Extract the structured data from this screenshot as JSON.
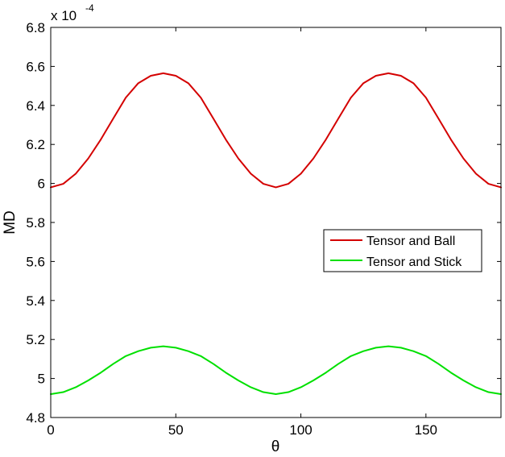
{
  "chart_data": {
    "type": "line",
    "xlabel": "θ",
    "ylabel": "MD",
    "multiplier_base": "x 10",
    "multiplier_exponent": "-4",
    "xlim": [
      0,
      180
    ],
    "ylim": [
      4.8,
      6.8
    ],
    "xticks": [
      0,
      50,
      100,
      150
    ],
    "yticks": [
      4.8,
      5,
      5.2,
      5.4,
      5.6,
      5.8,
      6,
      6.2,
      6.4,
      6.6,
      6.8
    ],
    "ytick_labels": [
      "4.8",
      "5",
      "5.2",
      "5.4",
      "5.6",
      "5.8",
      "6",
      "6.2",
      "6.4",
      "6.6",
      "6.8"
    ],
    "grid": false,
    "legend_position": "right-middle",
    "x": [
      0,
      5,
      10,
      15,
      20,
      25,
      30,
      35,
      40,
      45,
      50,
      55,
      60,
      65,
      70,
      75,
      80,
      85,
      90,
      95,
      100,
      105,
      110,
      115,
      120,
      125,
      130,
      135,
      140,
      145,
      150,
      155,
      160,
      165,
      170,
      175,
      180
    ],
    "series": [
      {
        "name": "Tensor and Ball",
        "color": "#d40000",
        "values": [
          5.98,
          5.998,
          6.05,
          6.128,
          6.225,
          6.333,
          6.44,
          6.514,
          6.552,
          6.565,
          6.552,
          6.514,
          6.44,
          6.333,
          6.225,
          6.128,
          6.05,
          5.998,
          5.98,
          5.998,
          6.05,
          6.128,
          6.225,
          6.333,
          6.44,
          6.514,
          6.552,
          6.565,
          6.552,
          6.514,
          6.44,
          6.333,
          6.225,
          6.128,
          6.05,
          5.998,
          5.98
        ]
      },
      {
        "name": "Tensor and Stick",
        "color": "#00e000",
        "values": [
          4.92,
          4.93,
          4.955,
          4.99,
          5.03,
          5.075,
          5.115,
          5.14,
          5.158,
          5.165,
          5.158,
          5.14,
          5.115,
          5.075,
          5.03,
          4.99,
          4.955,
          4.93,
          4.92,
          4.93,
          4.955,
          4.99,
          5.03,
          5.075,
          5.115,
          5.14,
          5.158,
          5.165,
          5.158,
          5.14,
          5.115,
          5.075,
          5.03,
          4.99,
          4.955,
          4.93,
          4.92
        ]
      }
    ]
  }
}
